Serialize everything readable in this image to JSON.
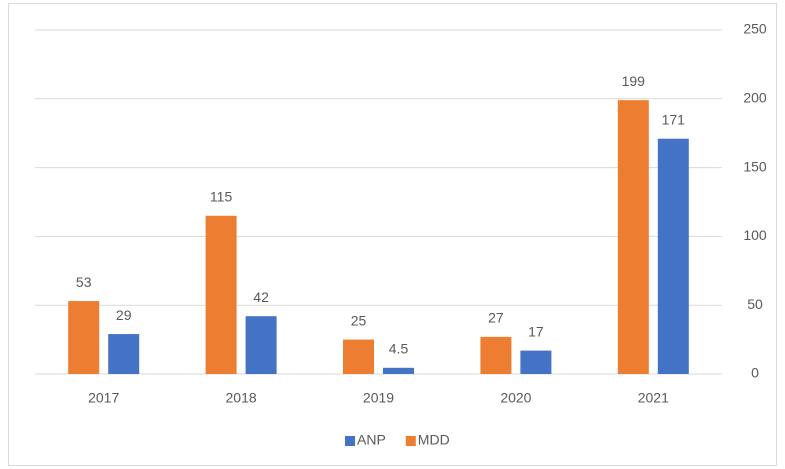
{
  "chart_data": {
    "type": "bar",
    "categories": [
      "2017",
      "2018",
      "2019",
      "2020",
      "2021"
    ],
    "series": [
      {
        "name": "ANP",
        "color": "#4472c4",
        "values": [
          29,
          42,
          4.5,
          17,
          171
        ]
      },
      {
        "name": "MDD",
        "color": "#ed7d31",
        "values": [
          53,
          115,
          25,
          27,
          199
        ]
      }
    ],
    "ylim": [
      0,
      250
    ],
    "yticks": [
      0,
      50,
      100,
      150,
      200,
      250
    ],
    "grid": true,
    "y_axis_side": "right",
    "legend": "bottom"
  }
}
